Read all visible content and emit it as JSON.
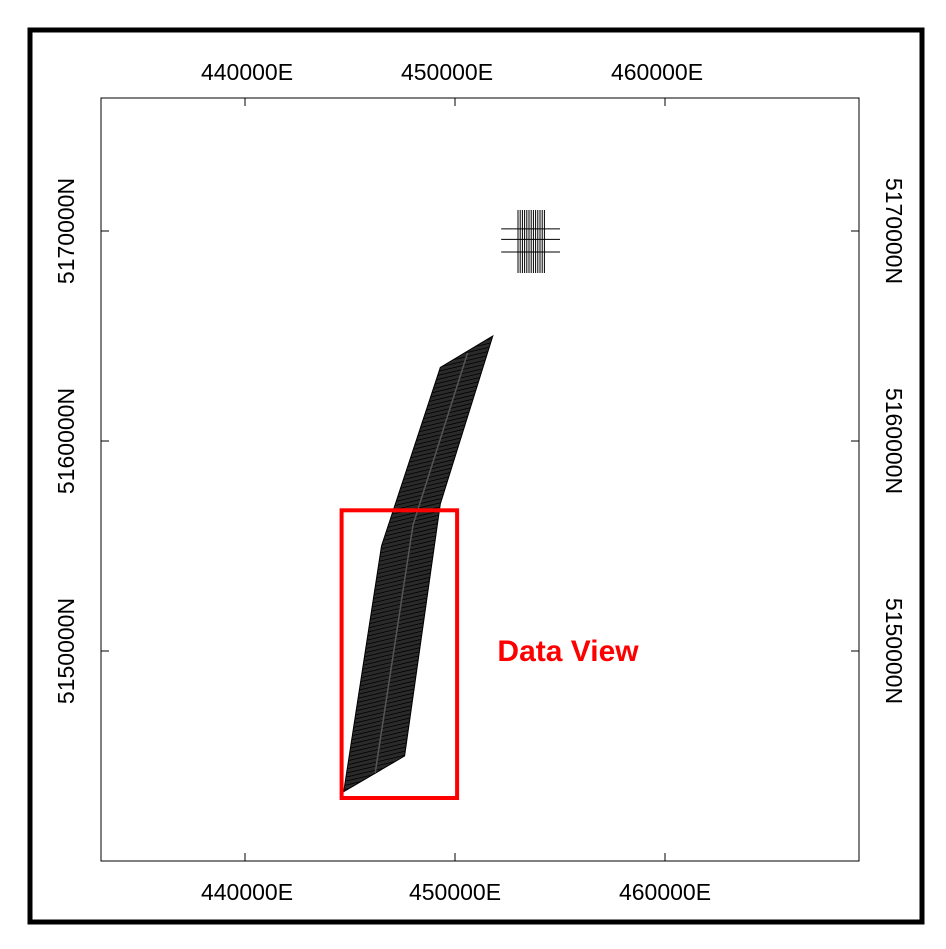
{
  "map": {
    "colors": {
      "frame": "#000000",
      "plot_border": "#000000",
      "survey_lines": "#000000",
      "highlight": "#ff0000"
    },
    "x_axis": {
      "labels": [
        "440000E",
        "450000E",
        "460000E"
      ],
      "values": [
        440000,
        450000,
        460000
      ],
      "range": [
        433000,
        469000
      ]
    },
    "y_axis": {
      "labels": [
        "5170000N",
        "5160000N",
        "5150000N"
      ],
      "values": [
        5170000,
        5160000,
        5150000
      ],
      "range": [
        5140000,
        5175500
      ]
    },
    "survey_blocks": [
      {
        "name": "main-survey-block",
        "outline_easting": [
          444700,
          446500,
          449300,
          451800,
          449300,
          447600
        ],
        "outline_northing": [
          5143300,
          5155000,
          5163500,
          5165000,
          5157000,
          5145000
        ],
        "centerline_easting": [
          446200,
          448000,
          450600
        ],
        "centerline_northing": [
          5144200,
          5156000,
          5164200
        ]
      },
      {
        "name": "small-survey-block",
        "easting_range": [
          453000,
          454300
        ],
        "northing_range": [
          5168000,
          5171000
        ],
        "tie_lines_northing": [
          5170100,
          5169600,
          5169000
        ],
        "tie_lines_easting_range": [
          452200,
          455000
        ]
      }
    ],
    "highlight_box": {
      "easting_range": [
        444600,
        450100
      ],
      "northing_range": [
        5143000,
        5156700
      ],
      "label": "Data View",
      "label_position_easting": 453000,
      "label_position_northing": 5150000
    }
  }
}
